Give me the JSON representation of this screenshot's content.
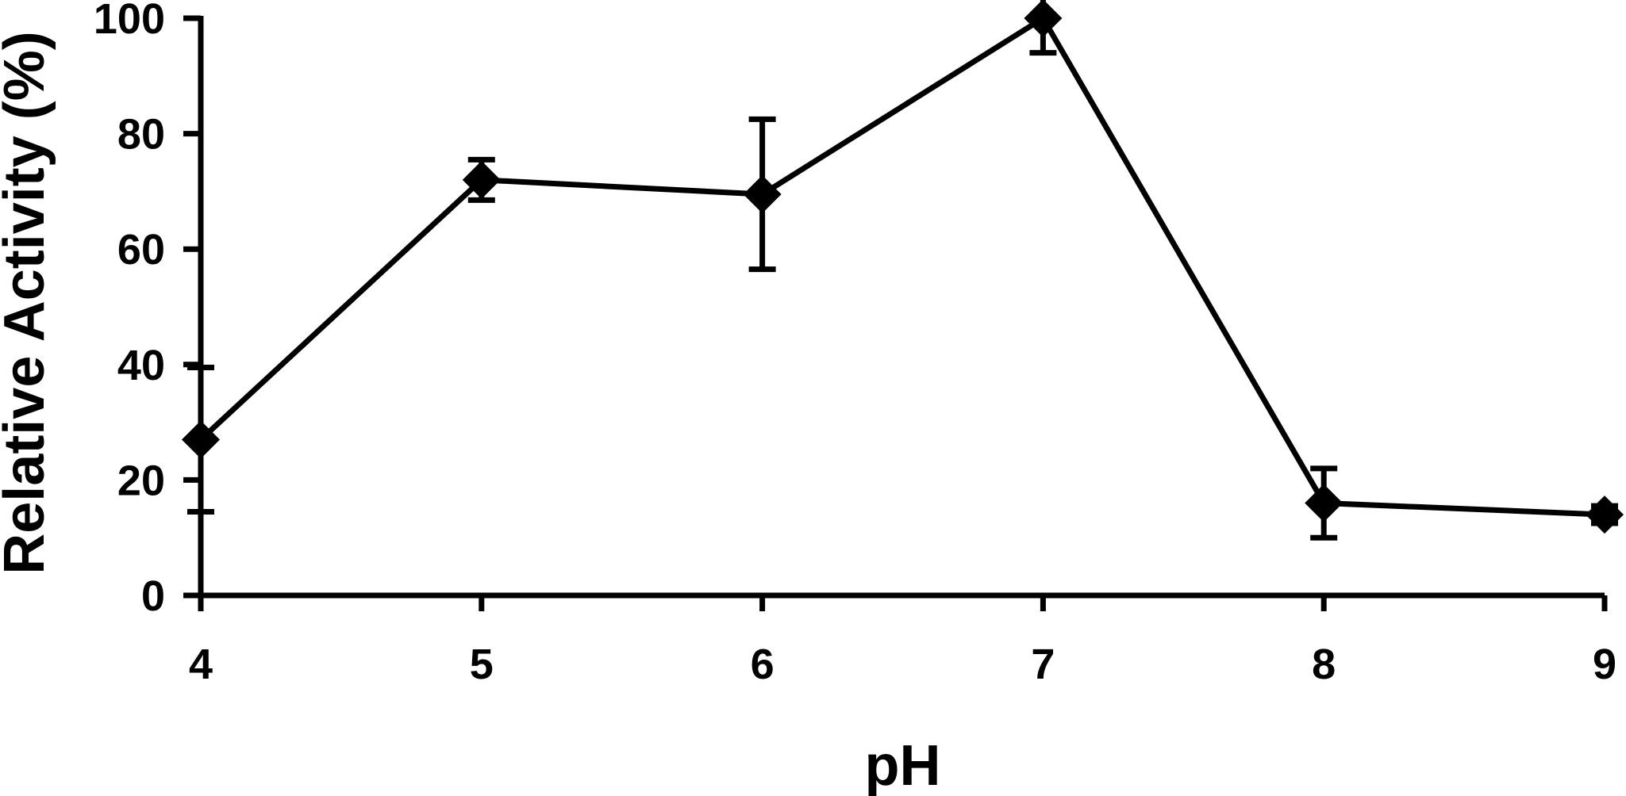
{
  "chart_data": {
    "type": "line",
    "title": "",
    "xlabel": "pH",
    "ylabel": "Relative Activity (%)",
    "xlim": [
      4,
      9
    ],
    "ylim": [
      0,
      100
    ],
    "x_ticks": [
      4,
      5,
      6,
      7,
      8,
      9
    ],
    "y_ticks": [
      0,
      20,
      40,
      60,
      80,
      100
    ],
    "grid": false,
    "legend": "none",
    "series": [
      {
        "x": [
          4,
          5,
          6,
          7,
          8,
          9
        ],
        "y": [
          27,
          72,
          69.5,
          100,
          16,
          14
        ],
        "error": [
          12.5,
          3.5,
          13,
          6,
          6,
          1.5
        ],
        "marker": "diamond",
        "color": "#000000"
      }
    ]
  }
}
